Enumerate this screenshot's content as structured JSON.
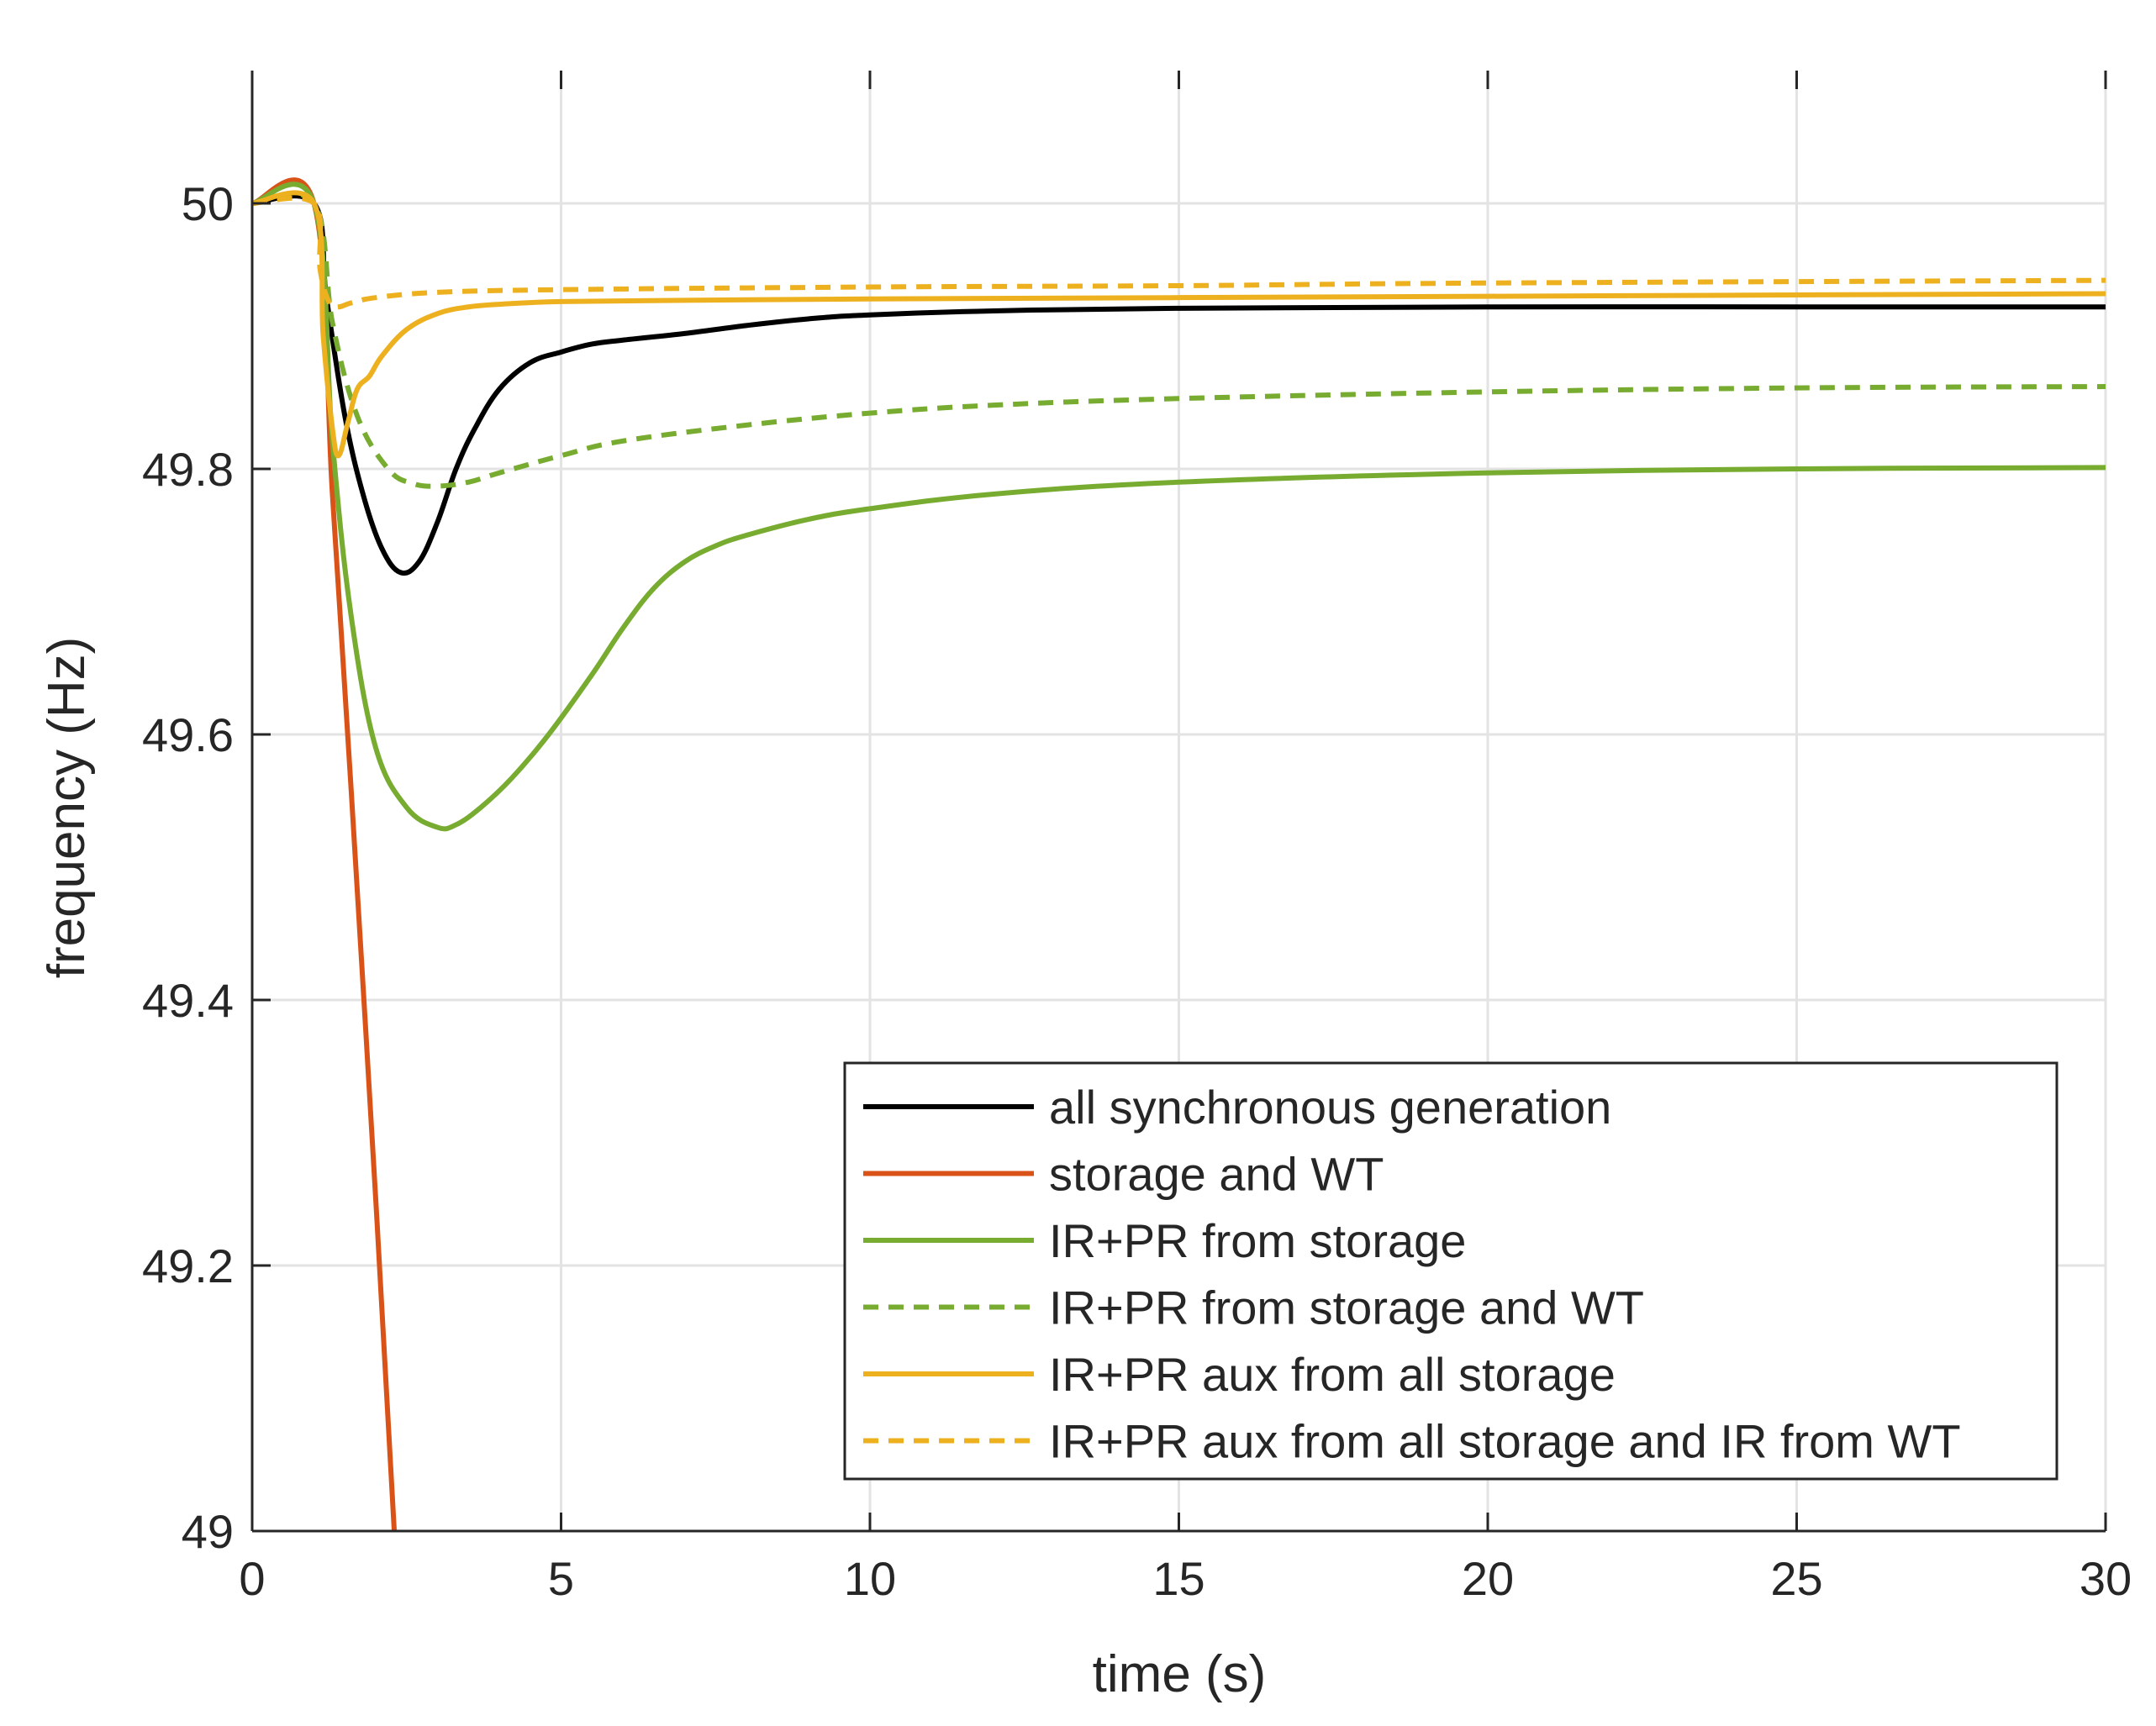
{
  "chart_data": {
    "type": "line",
    "title": "",
    "xlabel": "time (s)",
    "ylabel": "frequency (Hz)",
    "xlim": [
      0,
      30
    ],
    "ylim": [
      49,
      50.1
    ],
    "xticks": [
      0,
      5,
      10,
      15,
      20,
      25,
      30
    ],
    "yticks": [
      49,
      49.2,
      49.4,
      49.6,
      49.8,
      50
    ],
    "xtick_labels": [
      "0",
      "5",
      "10",
      "15",
      "20",
      "25",
      "30"
    ],
    "ytick_labels": [
      "49",
      "49.2",
      "49.4",
      "49.6",
      "49.8",
      "50"
    ],
    "grid": true,
    "legend_position": "bottom-right",
    "series": [
      {
        "name": "all synchronous generation",
        "color": "#000000",
        "dash": "solid",
        "x": [
          0,
          1,
          1.2,
          1.5,
          1.8,
          2.1,
          2.4,
          2.7,
          3.0,
          3.3,
          3.6,
          4.0,
          4.5,
          5.0,
          5.5,
          6.0,
          7.0,
          8.0,
          9.0,
          10.0,
          12.0,
          15.0,
          20.0,
          25.0,
          30.0
        ],
        "y": [
          50,
          50,
          49.93,
          49.84,
          49.78,
          49.74,
          49.722,
          49.73,
          49.76,
          49.8,
          49.83,
          49.86,
          49.88,
          49.888,
          49.894,
          49.897,
          49.902,
          49.908,
          49.913,
          49.916,
          49.919,
          49.921,
          49.922,
          49.922,
          49.922
        ]
      },
      {
        "name": "storage and WT",
        "color": "#d95319",
        "dash": "solid",
        "x": [
          0,
          1,
          1.3,
          1.6,
          2.0,
          2.3
        ],
        "y": [
          50,
          50,
          49.78,
          49.56,
          49.25,
          49.0
        ]
      },
      {
        "name": "IR+PR from storage",
        "color": "#77ac30",
        "dash": "solid",
        "x": [
          0,
          1,
          1.3,
          1.6,
          2.0,
          2.5,
          3.0,
          3.3,
          3.7,
          4.2,
          4.8,
          5.5,
          6.0,
          6.5,
          7.0,
          7.5,
          8.0,
          9.0,
          10.0,
          12.0,
          15.0,
          20.0,
          25.0,
          30.0
        ],
        "y": [
          50,
          50,
          49.82,
          49.69,
          49.59,
          49.545,
          49.53,
          49.532,
          49.545,
          49.567,
          49.6,
          49.645,
          49.68,
          49.71,
          49.73,
          49.742,
          49.75,
          49.762,
          49.77,
          49.781,
          49.79,
          49.797,
          49.8,
          49.801
        ]
      },
      {
        "name": "IR+PR from storage and WT",
        "color": "#77ac30",
        "dash": "dashed",
        "x": [
          0,
          1,
          1.3,
          1.7,
          2.2,
          2.6,
          3.0,
          3.5,
          4.0,
          5.0,
          6.0,
          8.0,
          10.0,
          12.0,
          15.0,
          20.0,
          25.0,
          30.0
        ],
        "y": [
          50,
          50,
          49.91,
          49.84,
          49.8,
          49.789,
          49.787,
          49.79,
          49.797,
          49.81,
          49.821,
          49.833,
          49.842,
          49.848,
          49.853,
          49.858,
          49.861,
          49.862
        ]
      },
      {
        "name": "IR+PR aux from all storage",
        "color": "#edb120",
        "dash": "solid",
        "x": [
          0,
          1,
          1.15,
          1.3,
          1.4,
          1.55,
          1.7,
          1.9,
          2.1,
          2.5,
          3.0,
          3.5,
          4.0,
          5.0,
          7.0,
          10.0,
          15.0,
          20.0,
          30.0
        ],
        "y": [
          50,
          50,
          49.9,
          49.83,
          49.81,
          49.835,
          49.86,
          49.87,
          49.885,
          49.905,
          49.917,
          49.922,
          49.924,
          49.926,
          49.927,
          49.928,
          49.929,
          49.93,
          49.932
        ]
      },
      {
        "name": "IR+PR aux from all storage and IR from WT",
        "color": "#edb120",
        "dash": "dashed",
        "x": [
          0,
          1,
          1.1,
          1.25,
          1.4,
          1.6,
          2.0,
          3.0,
          5.0,
          10.0,
          15.0,
          20.0,
          30.0
        ],
        "y": [
          50,
          50,
          49.95,
          49.925,
          49.922,
          49.925,
          49.929,
          49.933,
          49.935,
          49.937,
          49.938,
          49.94,
          49.942
        ]
      }
    ]
  }
}
